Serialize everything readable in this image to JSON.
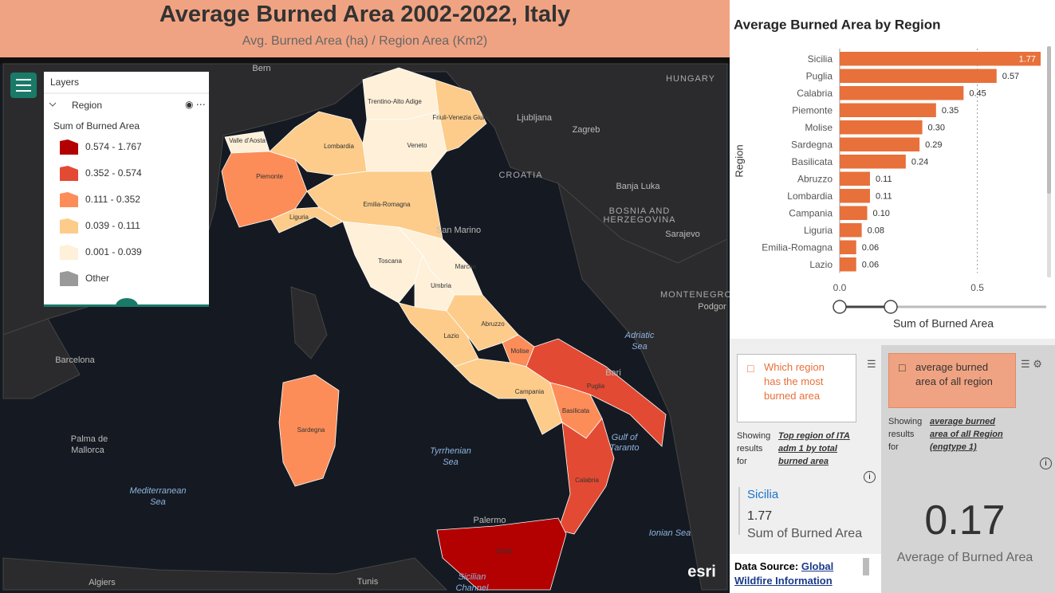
{
  "header": {
    "title": "Average Burned Area 2002-2022, Italy",
    "subtitle": "Avg. Burned Area (ha) / Region Area (Km2)"
  },
  "map": {
    "layers_title": "Layers",
    "layer": "Region",
    "legend_title": "Sum of Burned Area",
    "legend": [
      {
        "label": "0.574 - 1.767",
        "color": "#b30000"
      },
      {
        "label": "0.352 - 0.574",
        "color": "#e34a33"
      },
      {
        "label": "0.111 - 0.352",
        "color": "#fc8d59"
      },
      {
        "label": "0.039 - 0.111",
        "color": "#fdcc8a"
      },
      {
        "label": "0.001 - 0.039",
        "color": "#fef0d9"
      },
      {
        "label": "Other",
        "color": "#999999"
      }
    ],
    "regions": [
      {
        "name": "Valle d'Aosta",
        "class": 4
      },
      {
        "name": "Piemonte",
        "class": 2
      },
      {
        "name": "Lombardia",
        "class": 3
      },
      {
        "name": "Trentino-Alto Adige",
        "class": 4
      },
      {
        "name": "Veneto",
        "class": 4
      },
      {
        "name": "Friuli-Venezia Giulia",
        "class": 3
      },
      {
        "name": "Liguria",
        "class": 3
      },
      {
        "name": "Emilia-Romagna",
        "class": 3
      },
      {
        "name": "Toscana",
        "class": 4
      },
      {
        "name": "Marche",
        "class": 4
      },
      {
        "name": "Umbria",
        "class": 4
      },
      {
        "name": "Lazio",
        "class": 3
      },
      {
        "name": "Abruzzo",
        "class": 3
      },
      {
        "name": "Molise",
        "class": 2
      },
      {
        "name": "Campania",
        "class": 3
      },
      {
        "name": "Puglia",
        "class": 1
      },
      {
        "name": "Basilicata",
        "class": 2
      },
      {
        "name": "Calabria",
        "class": 1
      },
      {
        "name": "Sicilia",
        "class": 0
      },
      {
        "name": "Sardegna",
        "class": 2
      }
    ],
    "places": [
      "Bern",
      "HUNGARY",
      "Ljubljana",
      "Zagreb",
      "CROATIA",
      "Banja Luka",
      "BOSNIA AND",
      "HERZEGOVINA",
      "Sarajevo",
      "San Marino",
      "MONTENEGRO",
      "Podgor",
      "Barcelona",
      "Palma de",
      "Mallorca",
      "Mediterranean",
      "Sea",
      "Tyrrhenian",
      "Sea",
      "Adriatic",
      "Sea",
      "Gulf of",
      "Taranto",
      "Ionian Sea",
      "Bari",
      "Palermo",
      "Tunis",
      "Algiers",
      "Sicilian",
      "Channel",
      "esri"
    ]
  },
  "chart_data": {
    "type": "bar",
    "orientation": "horizontal",
    "title": "Average Burned Area by Region",
    "y_label": "Region",
    "x_label": "Sum of Burned Area",
    "categories": [
      "Sicilia",
      "Puglia",
      "Calabria",
      "Piemonte",
      "Molise",
      "Sardegna",
      "Basilicata",
      "Abruzzo",
      "Lombardia",
      "Campania",
      "Liguria",
      "Emilia-Romagna",
      "Lazio"
    ],
    "values": [
      1.77,
      0.57,
      0.45,
      0.35,
      0.3,
      0.29,
      0.24,
      0.11,
      0.11,
      0.1,
      0.08,
      0.06,
      0.06
    ],
    "value_labels": [
      "1.77",
      "0.57",
      "0.45",
      "0.35",
      "0.30",
      "0.29",
      "0.24",
      "0.11",
      "0.11",
      "0.10",
      "0.08",
      "0.06",
      "0.06"
    ],
    "color": "#e8703a",
    "xlim": [
      0,
      0.73
    ],
    "xticks": [
      {
        "value": 0,
        "label": "0.0"
      },
      0.5
    ]
  },
  "qa": {
    "left": {
      "question": "Which region has the most burned area",
      "showing": "Showing results for",
      "interpretation": "Top region of ITA adm 1 by total burned area",
      "answer_name": "Sicilia",
      "answer_value": 1.77,
      "answer_measure": "Sum of Burned Area"
    },
    "right": {
      "question": "average burned area of all region",
      "showing": "Showing results for",
      "interpretation": "average burned area of all Region (engtype 1)",
      "answer_value": 0.17,
      "answer_measure": "Average of Burned Area"
    }
  },
  "data_source": {
    "label": "Data Source:",
    "link": "Global Wildfire Information"
  }
}
